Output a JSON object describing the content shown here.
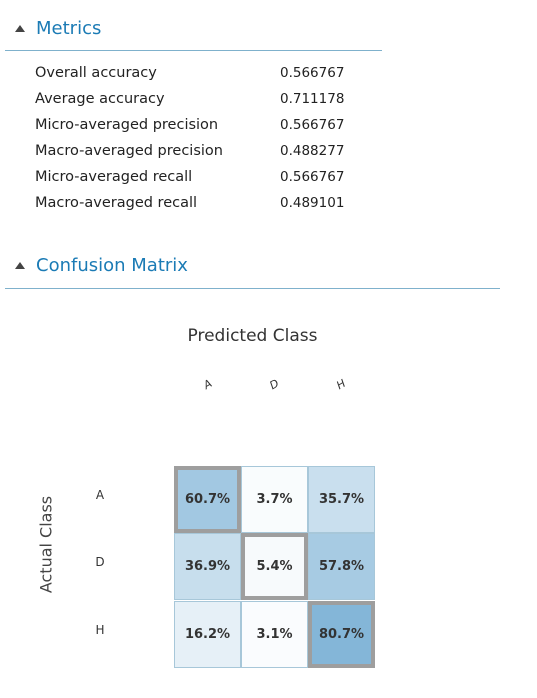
{
  "metrics": {
    "title": "Metrics",
    "rows": [
      {
        "label": "Overall accuracy",
        "value": "0.566767"
      },
      {
        "label": "Average accuracy",
        "value": "0.711178"
      },
      {
        "label": "Micro-averaged precision",
        "value": "0.566767"
      },
      {
        "label": "Macro-averaged precision",
        "value": "0.488277"
      },
      {
        "label": "Micro-averaged recall",
        "value": "0.566767"
      },
      {
        "label": "Macro-averaged recall",
        "value": "0.489101"
      }
    ]
  },
  "confusion": {
    "title": "Confusion Matrix",
    "predicted_label": "Predicted Class",
    "actual_label": "Actual Class",
    "classes": [
      "A",
      "D",
      "H"
    ],
    "cells": [
      [
        "60.7%",
        "3.7%",
        "35.7%"
      ],
      [
        "36.9%",
        "5.4%",
        "57.8%"
      ],
      [
        "16.2%",
        "3.1%",
        "80.7%"
      ]
    ],
    "values": [
      [
        60.7,
        3.7,
        35.7
      ],
      [
        36.9,
        5.4,
        57.8
      ],
      [
        16.2,
        3.1,
        80.7
      ]
    ],
    "color_low": "#ffffff",
    "color_high": "#84b6d8",
    "diag_border": "#9e9e9e",
    "accent": "#1b7bb5"
  }
}
